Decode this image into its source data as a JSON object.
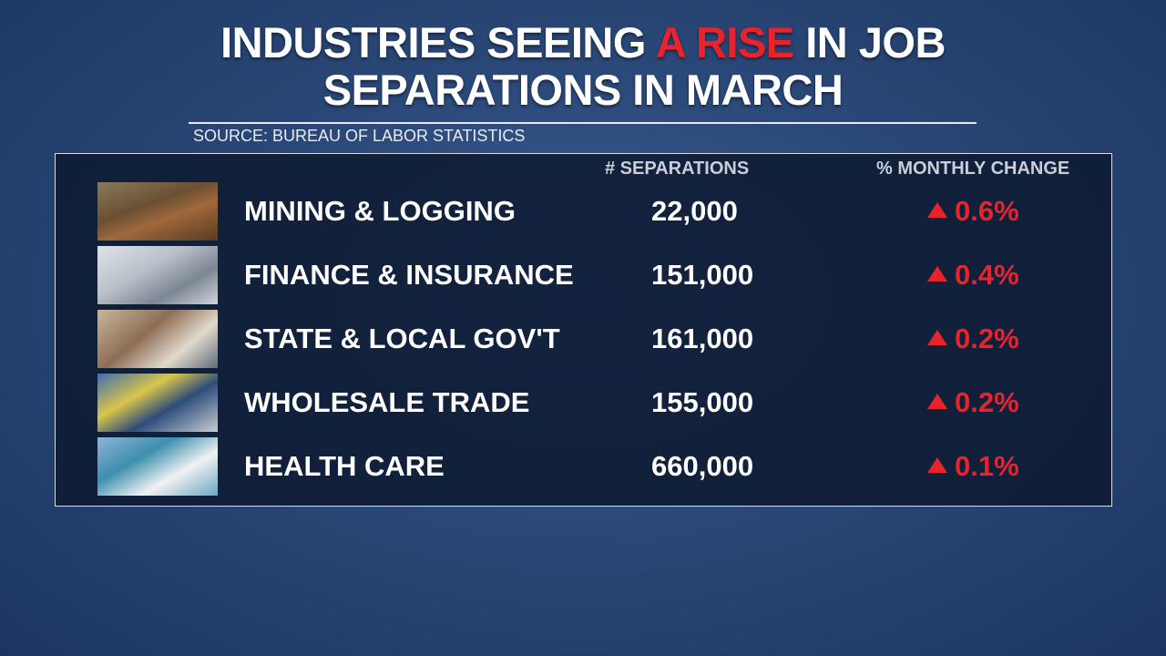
{
  "header": {
    "title": {
      "line1_start": "INDUSTRIES SEEING ",
      "highlight": "A RISE",
      "line1_end": " IN JOB",
      "line2": "SEPARATIONS IN MARCH"
    },
    "source": "SOURCE: BUREAU OF LABOR STATISTICS"
  },
  "table": {
    "columns": [
      "# SEPARATIONS",
      "% MONTHLY CHANGE"
    ],
    "rows": [
      {
        "industry": "MINING & LOGGING",
        "separations": "22,000",
        "change": "0.6%"
      },
      {
        "industry": "FINANCE & INSURANCE",
        "separations": "151,000",
        "change": "0.4%"
      },
      {
        "industry": "STATE & LOCAL GOV'T",
        "separations": "161,000",
        "change": "0.2%"
      },
      {
        "industry": "WHOLESALE TRADE",
        "separations": "155,000",
        "change": "0.2%"
      },
      {
        "industry": "HEALTH CARE",
        "separations": "660,000",
        "change": "0.1%"
      }
    ]
  }
}
